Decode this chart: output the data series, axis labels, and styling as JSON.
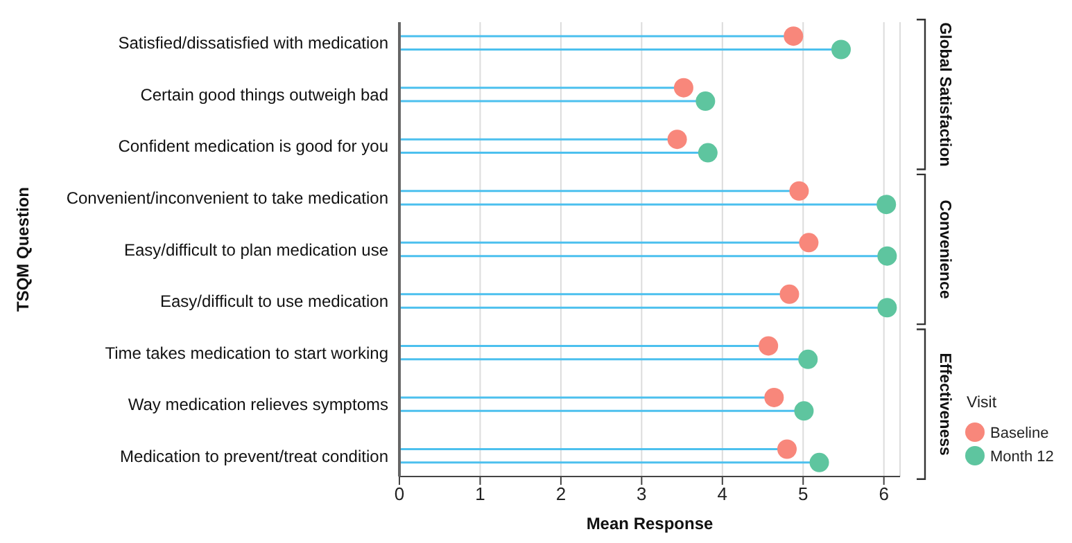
{
  "chart_data": {
    "type": "lollipop",
    "orientation": "horizontal",
    "xlabel": "Mean Response",
    "ylabel": "TSQM Question",
    "legend_title": "Visit",
    "categories": [
      "Satisfied/dissatisfied with medication",
      "Certain good things outweigh bad",
      "Confident medication is good for you",
      "Convenient/inconvenient to take medication",
      "Easy/difficult to plan medication use",
      "Easy/difficult to use medication",
      "Time takes medication to start working",
      "Way medication relieves symptoms",
      "Medication to prevent/treat condition"
    ],
    "series": [
      {
        "name": "Baseline",
        "color": "#f8877b",
        "values": [
          4.88,
          3.52,
          3.44,
          4.95,
          5.07,
          4.83,
          4.57,
          4.64,
          4.8
        ]
      },
      {
        "name": "Month 12",
        "color": "#5ec59f",
        "values": [
          5.47,
          3.79,
          3.82,
          6.03,
          6.04,
          6.04,
          5.06,
          5.01,
          5.2
        ]
      }
    ],
    "xlim": [
      0,
      6.2
    ],
    "xticks": [
      0,
      1,
      2,
      3,
      4,
      5,
      6
    ],
    "grid": "x",
    "legend": "bottom right",
    "marker": "circle",
    "annotations": [
      "Global Satisfaction",
      "Convenience",
      "Effectiveness"
    ]
  }
}
